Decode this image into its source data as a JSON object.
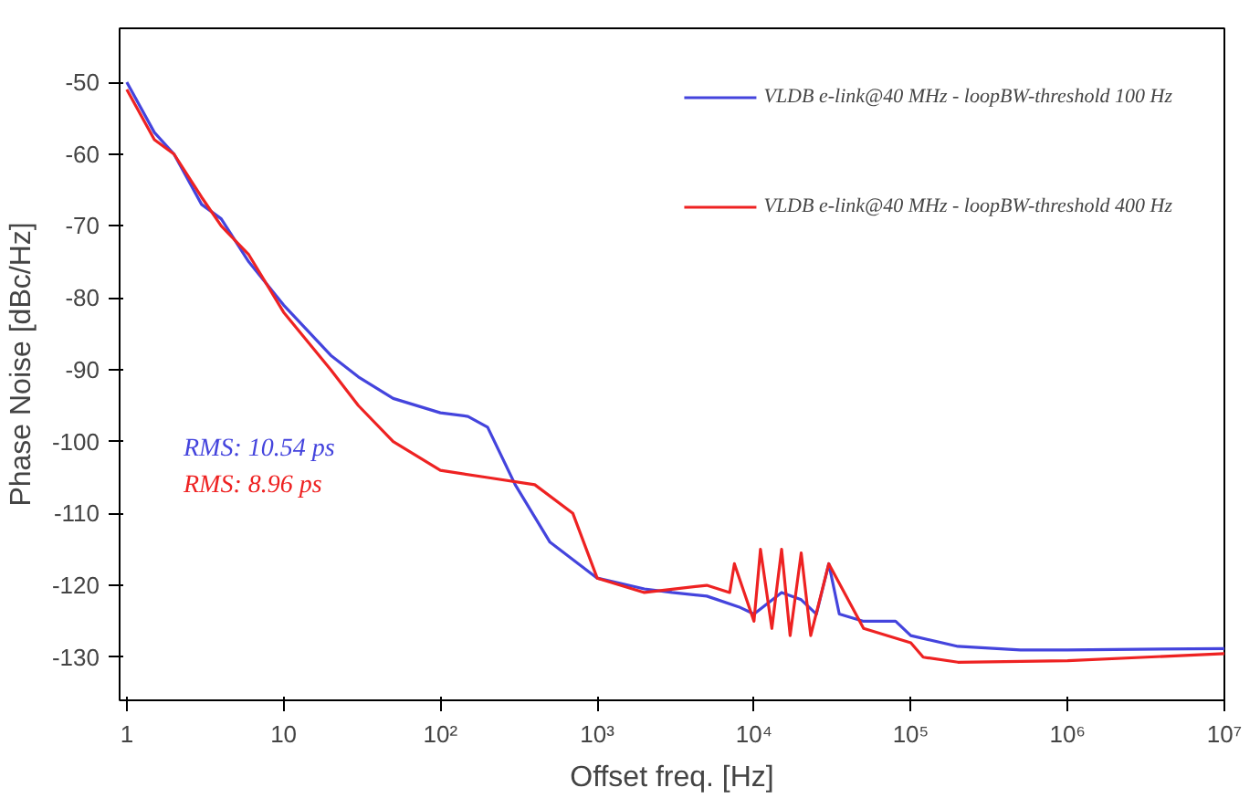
{
  "chart_data": {
    "type": "line",
    "xlabel": "Offset freq. [Hz]",
    "ylabel": "Phase Noise [dBc/Hz]",
    "log": "x",
    "grid": false,
    "legend": "top right",
    "marker": "none",
    "line_style": "solid",
    "xlim": [
      0.9,
      10000000
    ],
    "ylim": [
      -136,
      -42.5
    ],
    "xticks": [
      1,
      10,
      {
        "value": 100,
        "label": "10²"
      },
      {
        "value": 1000,
        "label": "10³"
      },
      {
        "value": 10000,
        "label": "10⁴"
      },
      {
        "value": 100000,
        "label": "10⁵"
      },
      {
        "value": 1000000,
        "label": "10⁶"
      },
      {
        "value": 10000000,
        "label": "10⁷"
      }
    ],
    "yticks": [
      -50,
      -60,
      -70,
      -80,
      -90,
      -100,
      -110,
      -120,
      -130
    ],
    "annotations": [
      "RMS: 10.54 ps",
      "RMS: 8.96 ps"
    ],
    "series": [
      {
        "name": "VLDB e-link@40 MHz - loopBW-threshold 100 Hz",
        "color": "#4444dd",
        "x": [
          1,
          1.5,
          2,
          3,
          4,
          6,
          10,
          20,
          30,
          50,
          100,
          150,
          200,
          300,
          500,
          1000,
          2000,
          3000,
          5000,
          8000,
          10000,
          15000,
          20000,
          25000,
          30000,
          35000,
          50000,
          80000,
          100000,
          200000,
          500000,
          1000000,
          10000000
        ],
        "values": [
          -50,
          -57,
          -60,
          -67,
          -69,
          -75,
          -81,
          -88,
          -91,
          -94,
          -96,
          -96.5,
          -98,
          -106,
          -114,
          -119,
          -120.5,
          -121,
          -121.5,
          -123,
          -124,
          -121,
          -122,
          -124,
          -117,
          -124,
          -125,
          -125,
          -127,
          -128.5,
          -129,
          -129,
          -128.8
        ]
      },
      {
        "name": "VLDB e-link@40 MHz - loopBW-threshold 400 Hz",
        "color": "#ee2222",
        "x": [
          1,
          1.5,
          2,
          3,
          4,
          6,
          10,
          20,
          30,
          50,
          100,
          200,
          400,
          700,
          1000,
          2000,
          5000,
          7000,
          7500,
          10000,
          11000,
          13000,
          15000,
          17000,
          20000,
          23000,
          30000,
          50000,
          100000,
          120000,
          200000,
          1000000,
          10000000
        ],
        "values": [
          -51,
          -58,
          -60,
          -66,
          -70,
          -74,
          -82,
          -90,
          -95,
          -100,
          -104,
          -105,
          -106,
          -110,
          -119,
          -121,
          -120,
          -121,
          -117,
          -125,
          -115,
          -126,
          -115,
          -127,
          -115.5,
          -127,
          -117,
          -126,
          -128,
          -130,
          -130.7,
          -130.5,
          -129.5
        ]
      }
    ]
  }
}
